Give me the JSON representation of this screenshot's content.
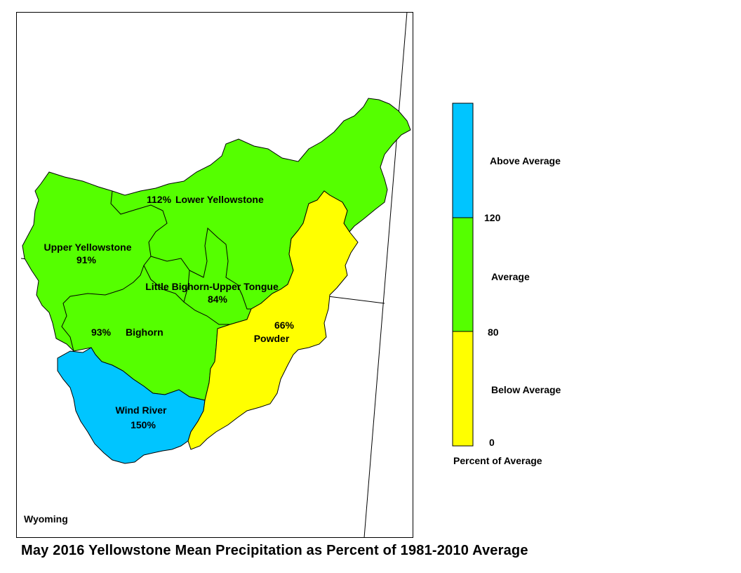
{
  "title": "May 2016 Yellowstone Mean Precipitation as Percent of 1981-2010 Average",
  "state_label": "Wyoming",
  "basins": [
    {
      "name": "Lower Yellowstone",
      "percent": "112%",
      "category": "Average"
    },
    {
      "name": "Upper Yellowstone",
      "percent": "91%",
      "category": "Average"
    },
    {
      "name": "Little Bighorn-Upper Tongue",
      "percent": "84%",
      "category": "Average"
    },
    {
      "name": "Bighorn",
      "percent": "93%",
      "category": "Average"
    },
    {
      "name": "Powder",
      "percent": "66%",
      "category": "Below Average"
    },
    {
      "name": "Wind River",
      "percent": "150%",
      "category": "Above Average"
    }
  ],
  "legend": {
    "title": "Percent of Average",
    "classes": [
      {
        "label": "Above Average",
        "color": "#00c5ff"
      },
      {
        "label": "Average",
        "color": "#55ff00"
      },
      {
        "label": "Below Average",
        "color": "#ffff00"
      }
    ],
    "breaks": [
      "120",
      "80",
      "0"
    ]
  },
  "colors": {
    "above": "#00c5ff",
    "average": "#55ff00",
    "below": "#ffff00",
    "outline": "#000000"
  }
}
